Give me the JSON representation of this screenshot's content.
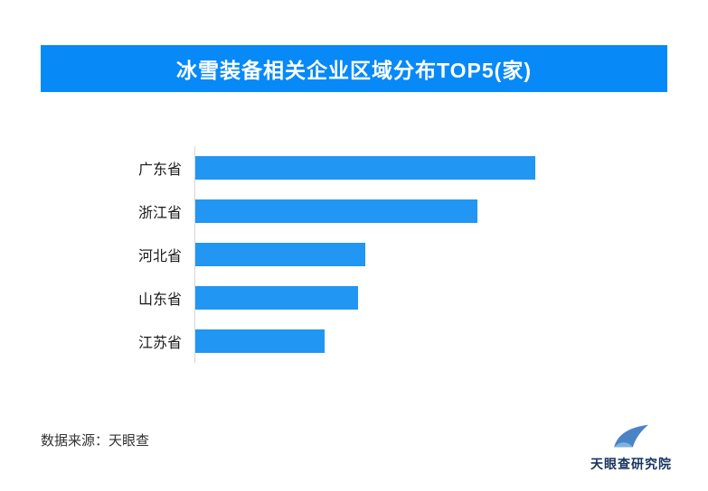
{
  "chart_data": {
    "type": "bar",
    "orientation": "horizontal",
    "title": "冰雪装备相关企业区域分布TOP5(家)",
    "categories": [
      "广东省",
      "浙江省",
      "河北省",
      "山东省",
      "江苏省"
    ],
    "values": [
      100,
      83,
      50,
      48,
      38
    ],
    "values_estimated": true,
    "xlabel": "",
    "ylabel": "",
    "grid": false,
    "legend": false
  },
  "footer": {
    "source": "数据来源：天眼查",
    "brand": "天眼查研究院"
  },
  "colors": {
    "banner": "#0789f8",
    "bar": "#2196f3",
    "axis_line": "#d6d6d6",
    "brand_text": "#16335f",
    "logo_main": "#4a84c6",
    "logo_light": "#7fb3e0"
  }
}
